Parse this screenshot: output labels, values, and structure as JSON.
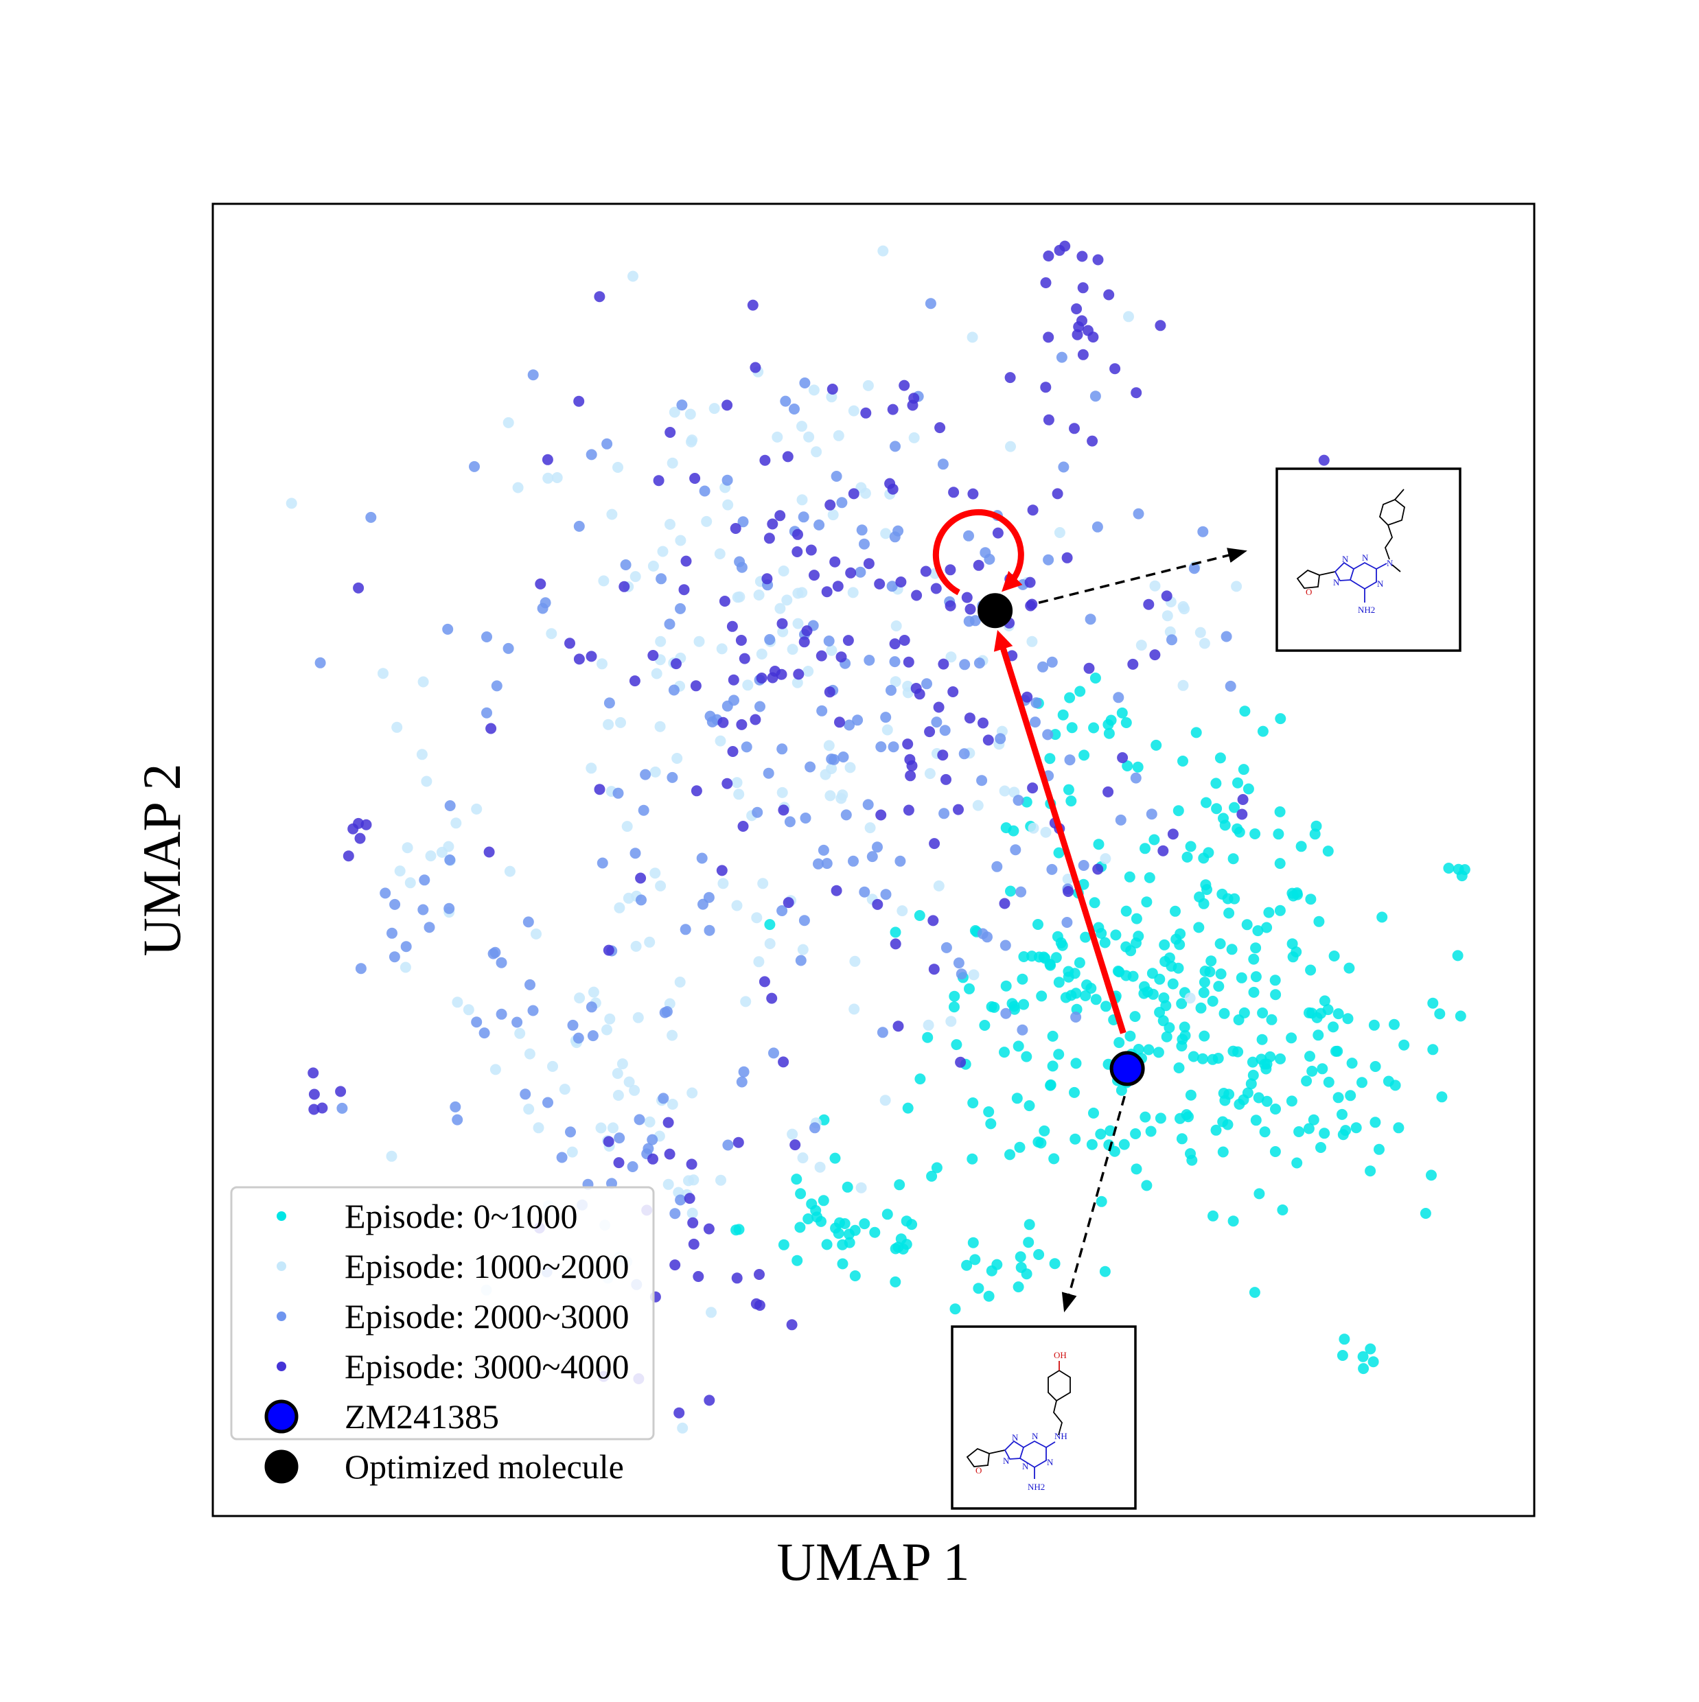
{
  "chart_data": {
    "type": "scatter",
    "title": "",
    "xlabel": "UMAP 1",
    "ylabel": "UMAP 2",
    "xlim": [
      0,
      100
    ],
    "ylim": [
      0,
      100
    ],
    "grid": false,
    "ticks_visible": false,
    "legend_placement": "lower-left",
    "series": [
      {
        "name": "Episode: 0~1000",
        "color": "#00e5e5",
        "clusters": [
          {
            "c": [
              70,
              37
            ],
            "s": [
              8,
              7
            ],
            "n": 200
          },
          {
            "c": [
              84,
              34
            ],
            "s": [
              5,
              5
            ],
            "n": 70
          },
          {
            "c": [
              77,
              52
            ],
            "s": [
              4,
              4
            ],
            "n": 45
          },
          {
            "c": [
              66,
              58
            ],
            "s": [
              3,
              3
            ],
            "n": 22
          },
          {
            "c": [
              62,
              42
            ],
            "s": [
              3,
              3
            ],
            "n": 12
          },
          {
            "c": [
              48,
              22
            ],
            "s": [
              4,
              2.5
            ],
            "n": 40
          },
          {
            "c": [
              59,
              18
            ],
            "s": [
              3,
              1.5
            ],
            "n": 14
          },
          {
            "c": [
              87,
              12
            ],
            "s": [
              1,
              1
            ],
            "n": 6
          },
          {
            "c": [
              94,
              49
            ],
            "s": [
              0.6,
              0.6
            ],
            "n": 4
          },
          {
            "c": [
              69,
              41
            ],
            "s": [
              4,
              4
            ],
            "n": 20
          }
        ],
        "count": 433
      },
      {
        "name": "Episode: 1000~2000",
        "color": "#c6e8fb",
        "clusters": [
          {
            "c": [
              43,
              63
            ],
            "s": [
              13,
              14
            ],
            "n": 170
          },
          {
            "c": [
              32,
              30
            ],
            "s": [
              8,
              8
            ],
            "n": 50
          },
          {
            "c": [
              74,
              69
            ],
            "s": [
              3,
              2
            ],
            "n": 10
          },
          {
            "c": [
              17,
              50
            ],
            "s": [
              2,
              5
            ],
            "n": 10
          }
        ],
        "count": 240
      },
      {
        "name": "Episode: 2000~3000",
        "color": "#6f95ef",
        "clusters": [
          {
            "c": [
              46,
              62
            ],
            "s": [
              13,
              13
            ],
            "n": 170
          },
          {
            "c": [
              30,
              30
            ],
            "s": [
              9,
              8
            ],
            "n": 40
          },
          {
            "c": [
              15,
              45
            ],
            "s": [
              3,
              3
            ],
            "n": 10
          }
        ],
        "count": 220
      },
      {
        "name": "Episode: 3000~4000",
        "color": "#4433d6",
        "clusters": [
          {
            "c": [
              50,
              66
            ],
            "s": [
              13,
              12
            ],
            "n": 160
          },
          {
            "c": [
              66,
              92
            ],
            "s": [
              2,
              3
            ],
            "n": 20
          },
          {
            "c": [
              36,
              21
            ],
            "s": [
              3,
              6
            ],
            "n": 25
          },
          {
            "c": [
              11,
              52
            ],
            "s": [
              0.8,
              0.8
            ],
            "n": 5
          },
          {
            "c": [
              8,
              32
            ],
            "s": [
              1,
              0.8
            ],
            "n": 5
          }
        ],
        "count": 215
      }
    ],
    "markers": [
      {
        "name": "ZM241385",
        "x": 69.2,
        "y": 34.1,
        "color": "#0000ff",
        "edge": "#000000"
      },
      {
        "name": "Optimized molecule",
        "x": 59.2,
        "y": 69.0,
        "color": "#000000",
        "edge": "#000000"
      }
    ],
    "annotations": [
      {
        "type": "arrow",
        "color": "#ff0000",
        "from": [
          68.9,
          36.8
        ],
        "to": [
          59.6,
          66.8
        ]
      },
      {
        "type": "loop-arrow",
        "color": "#ff0000",
        "center": [
          57.9,
          73.3
        ]
      },
      {
        "type": "dashed-arrow",
        "color": "#000000",
        "from": [
          62.5,
          69.6
        ],
        "to": [
          78.0,
          73.5
        ]
      },
      {
        "type": "dashed-arrow",
        "color": "#000000",
        "from": [
          69.0,
          32.0
        ],
        "to": [
          64.5,
          15.8
        ]
      }
    ],
    "insets": [
      {
        "name": "optimized-structure",
        "atoms": [
          "O",
          "N",
          "N",
          "N",
          "N",
          "N",
          "NH2"
        ]
      },
      {
        "name": "zm241385-structure",
        "atoms": [
          "O",
          "N",
          "N",
          "N",
          "N",
          "N",
          "NH",
          "NH2",
          "OH"
        ]
      }
    ]
  }
}
